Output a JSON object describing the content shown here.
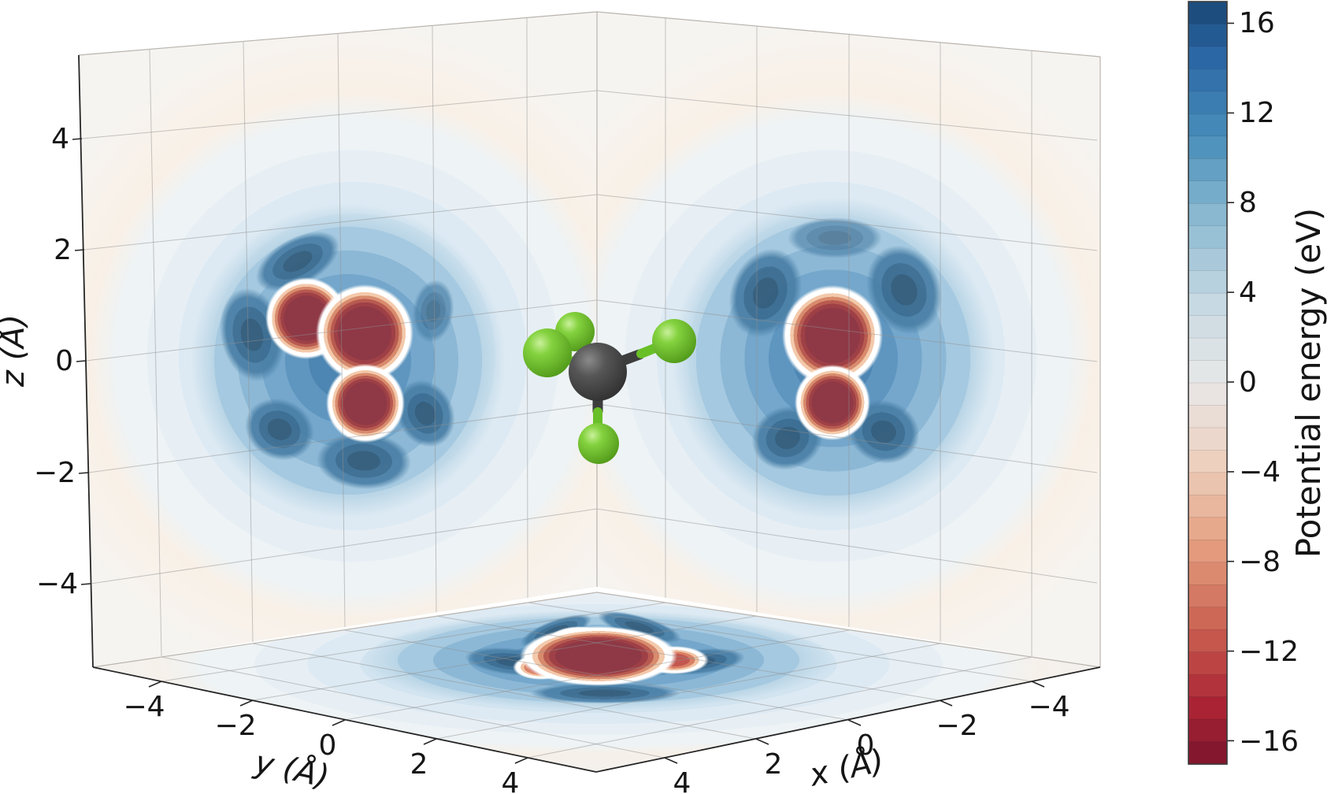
{
  "axes": {
    "x": {
      "label": "x (Å)",
      "ticks": [
        "4",
        "2",
        "0",
        "−2",
        "−4"
      ]
    },
    "y": {
      "label": "y (Å)",
      "ticks": [
        "−4",
        "−2",
        "0",
        "2",
        "4"
      ]
    },
    "z": {
      "label": "z (Å)",
      "ticks": [
        "4",
        "2",
        "0",
        "−2",
        "−4"
      ]
    }
  },
  "colorbar": {
    "label": "Potential energy (eV)",
    "ticks": [
      "16",
      "12",
      "8",
      "4",
      "0",
      "−4",
      "−8",
      "−12",
      "−16"
    ]
  },
  "colors": {
    "wall_background": "#f8f1ea",
    "deep_blue_contour": "#315a79",
    "deep_red_contour": "#8f3946",
    "light_blue_field": "#d2e4f0",
    "atom_green": "#6fc32f",
    "atom_gray": "#3f3f3f"
  },
  "chart_data": {
    "type": "3d_contour_slices",
    "title": "",
    "description": "Three orthogonal filled-contour slices (y–z left wall, x–z right wall, x–y floor) of the potential energy field around a tetrahedral five-atom molecule shown as a ball-and-stick model (dark-gray central atom, four green terminal atoms).",
    "axes": {
      "x": {
        "label": "x (Å)",
        "range": [
          -5.5,
          5.5
        ],
        "tick_values": [
          4,
          2,
          0,
          -2,
          -4
        ]
      },
      "y": {
        "label": "y (Å)",
        "range": [
          -5.5,
          5.5
        ],
        "tick_values": [
          -4,
          -2,
          0,
          2,
          4
        ]
      },
      "z": {
        "label": "z (Å)",
        "range": [
          -5.5,
          5.5
        ],
        "tick_values": [
          4,
          2,
          0,
          -2,
          -4
        ]
      }
    },
    "colorbar": {
      "label": "Potential energy (eV)",
      "colormap": "RdBu",
      "vmin": -17,
      "vmax": 17,
      "level_step": 1,
      "tick_values": [
        16,
        12,
        8,
        4,
        0,
        -4,
        -8,
        -12,
        -16
      ]
    },
    "slices": [
      {
        "plane": "y-z",
        "location": "left wall",
        "negative_wells_A": [
          {
            "y": -1.1,
            "z": 0.9
          },
          {
            "y": 0.1,
            "z": 0.6
          },
          {
            "y": 0.1,
            "z": -0.8
          }
        ],
        "well_core_eV": -17,
        "surrounding_shell_eV": 13,
        "far_field_eV": 0
      },
      {
        "plane": "x-z",
        "location": "right wall",
        "negative_wells_A": [
          {
            "x": 0.2,
            "z": 0.7
          },
          {
            "x": 0.2,
            "z": -0.8
          }
        ],
        "well_core_eV": -17,
        "surrounding_shell_eV": 13,
        "far_field_eV": 0
      },
      {
        "plane": "x-y",
        "location": "floor",
        "negative_wells_A": [
          {
            "x": 0.0,
            "y": 0.0
          },
          {
            "x": 0.5,
            "y": -1.3
          },
          {
            "x": -1.2,
            "y": -0.8
          },
          {
            "x": -0.2,
            "y": 1.6
          }
        ],
        "well_core_eV": -17,
        "surrounding_shell_eV": 13,
        "far_field_eV": 0
      }
    ],
    "molecule": {
      "model": "ball-and-stick",
      "geometry": "tetrahedral",
      "central_atom_color": "#3f3f3f",
      "terminal_atom_color": "#6fc32f",
      "terminal_atom_count": 4
    }
  }
}
